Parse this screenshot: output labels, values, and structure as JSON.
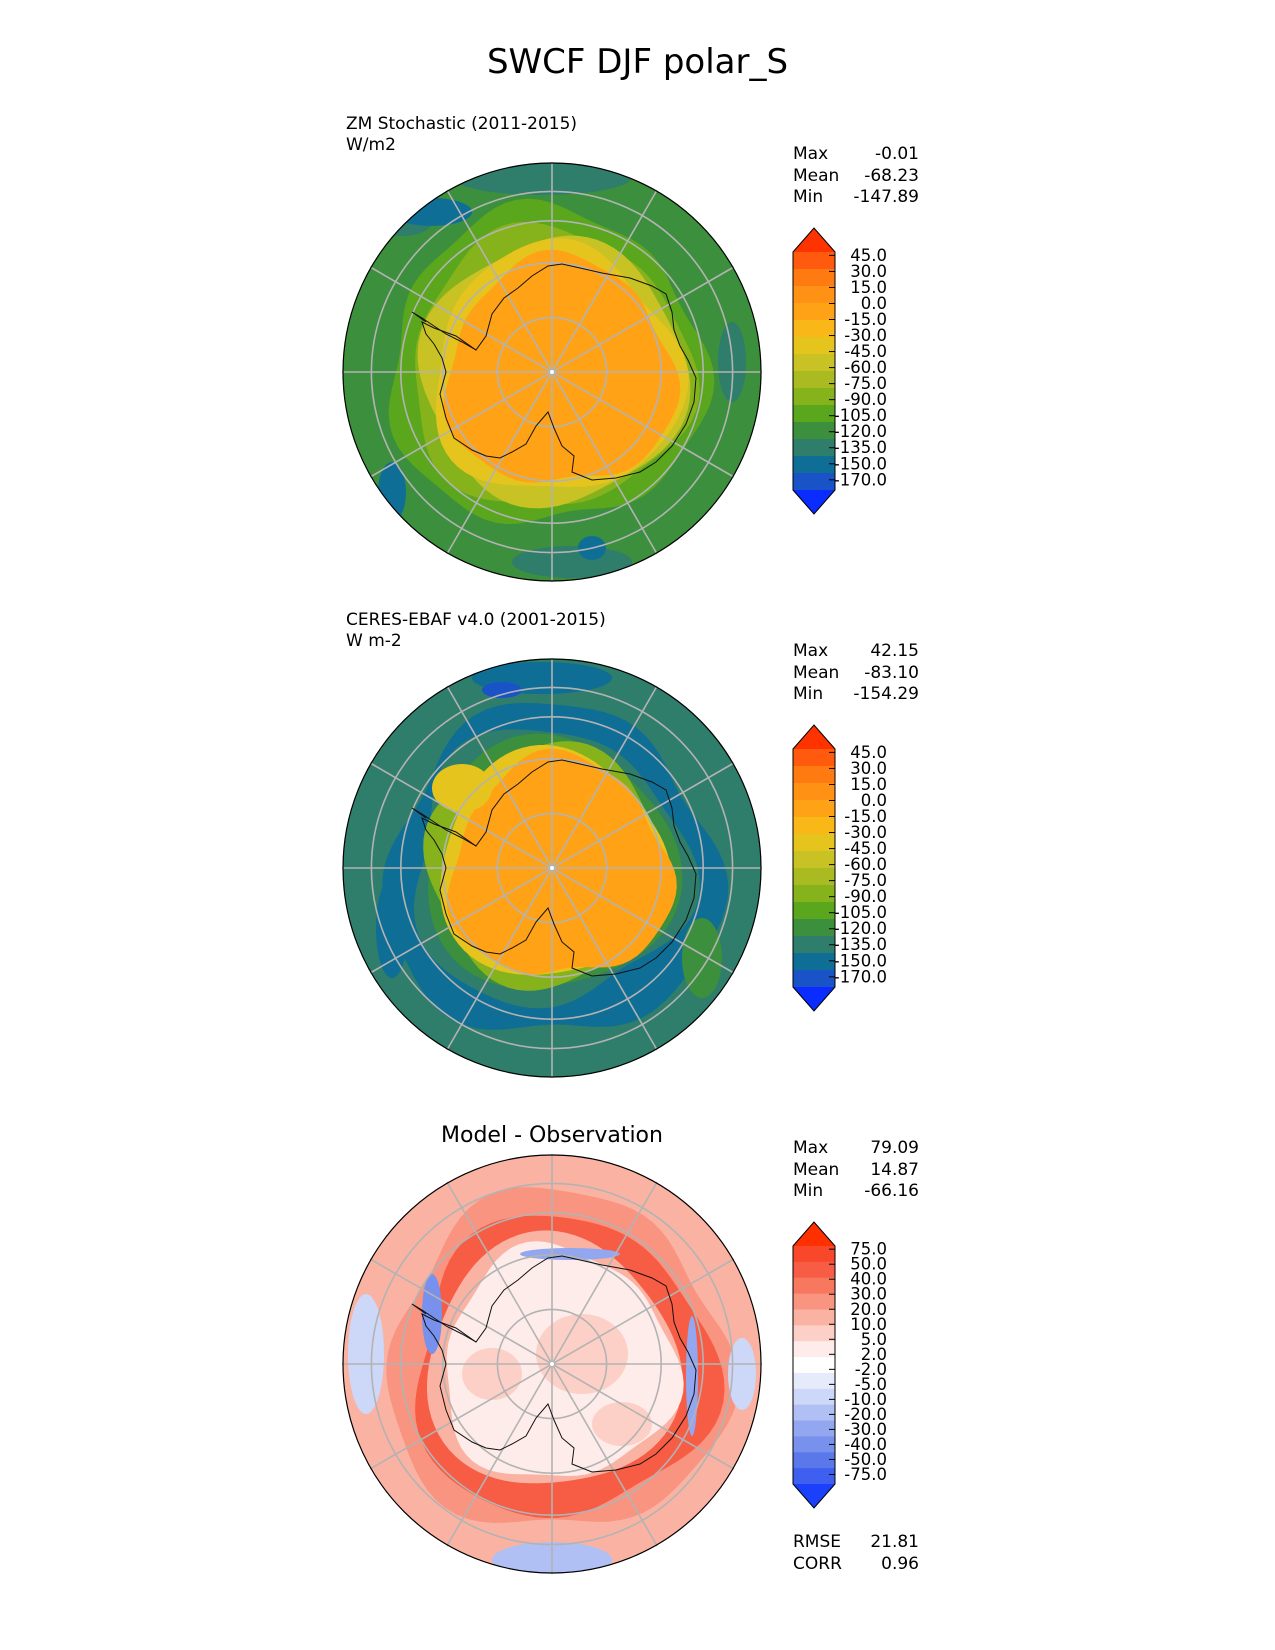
{
  "figure": {
    "title": "SWCF DJF polar_S"
  },
  "panels": [
    {
      "id": "test",
      "title_line1": "ZM Stochastic (2011-2015)",
      "title_line2": "W/m2",
      "stats": [
        {
          "label": "Max",
          "value": "-0.01"
        },
        {
          "label": "Mean",
          "value": "-68.23"
        },
        {
          "label": "Min",
          "value": "-147.89"
        }
      ]
    },
    {
      "id": "reference",
      "title_line1": "CERES-EBAF v4.0 (2001-2015)",
      "title_line2": "W m-2",
      "stats": [
        {
          "label": "Max",
          "value": "42.15"
        },
        {
          "label": "Mean",
          "value": "-83.10"
        },
        {
          "label": "Min",
          "value": "-154.29"
        }
      ]
    },
    {
      "id": "difference",
      "title_center": "Model - Observation",
      "stats": [
        {
          "label": "Max",
          "value": "79.09"
        },
        {
          "label": "Mean",
          "value": "14.87"
        },
        {
          "label": "Min",
          "value": "-66.16"
        }
      ],
      "metrics": [
        {
          "label": "RMSE",
          "value": "21.81"
        },
        {
          "label": "CORR",
          "value": "0.96"
        }
      ]
    }
  ],
  "chart_data": [
    {
      "type": "heatmap",
      "projection": "south-polar-stereographic",
      "title": "ZM Stochastic (2011-2015)",
      "units": "W/m2",
      "stats": {
        "max": -0.01,
        "mean": -68.23,
        "min": -147.89
      },
      "colorbar": {
        "tick_labels": [
          "45.0",
          "30.0",
          "15.0",
          "0.0",
          "-15.0",
          "-30.0",
          "-45.0",
          "-60.0",
          "-75.0",
          "-90.0",
          "-105.0",
          "-120.0",
          "-135.0",
          "-150.0",
          "-170.0"
        ],
        "colors": [
          "#ff3300",
          "#ff5a0d",
          "#ff7b12",
          "#ff9214",
          "#ffa216",
          "#f9b817",
          "#e6c41e",
          "#c9c224",
          "#a9bb21",
          "#86b31c",
          "#5aa61c",
          "#3c8f3c",
          "#2f7d6b",
          "#0e6e96",
          "#1a52c8",
          "#0a2cff"
        ],
        "extend": "both"
      }
    },
    {
      "type": "heatmap",
      "projection": "south-polar-stereographic",
      "title": "CERES-EBAF v4.0 (2001-2015)",
      "units": "W m-2",
      "stats": {
        "max": 42.15,
        "mean": -83.1,
        "min": -154.29
      },
      "colorbar": {
        "tick_labels": [
          "45.0",
          "30.0",
          "15.0",
          "0.0",
          "-15.0",
          "-30.0",
          "-45.0",
          "-60.0",
          "-75.0",
          "-90.0",
          "-105.0",
          "-120.0",
          "-135.0",
          "-150.0",
          "-170.0"
        ],
        "colors": [
          "#ff3300",
          "#ff5a0d",
          "#ff7b12",
          "#ff9214",
          "#ffa216",
          "#f9b817",
          "#e6c41e",
          "#c9c224",
          "#a9bb21",
          "#86b31c",
          "#5aa61c",
          "#3c8f3c",
          "#2f7d6b",
          "#0e6e96",
          "#1a52c8",
          "#0a2cff"
        ],
        "extend": "both"
      }
    },
    {
      "type": "heatmap",
      "projection": "south-polar-stereographic",
      "title": "Model - Observation",
      "stats": {
        "max": 79.09,
        "mean": 14.87,
        "min": -66.16
      },
      "metrics": {
        "rmse": 21.81,
        "corr": 0.96
      },
      "colorbar": {
        "tick_labels": [
          "75.0",
          "50.0",
          "40.0",
          "30.0",
          "20.0",
          "10.0",
          "5.0",
          "2.0",
          "-2.0",
          "-5.0",
          "-10.0",
          "-20.0",
          "-30.0",
          "-40.0",
          "-50.0",
          "-75.0"
        ],
        "colors": [
          "#ff3000",
          "#f9472c",
          "#f75c45",
          "#f7775f",
          "#f8947f",
          "#fab3a3",
          "#fcd0c6",
          "#feecea",
          "#ffffff",
          "#e6ebfb",
          "#cdd7f8",
          "#b0bff4",
          "#93a6f0",
          "#7791ed",
          "#5a78ea",
          "#3e5ff0",
          "#1b40fb"
        ],
        "extend": "both"
      }
    }
  ]
}
